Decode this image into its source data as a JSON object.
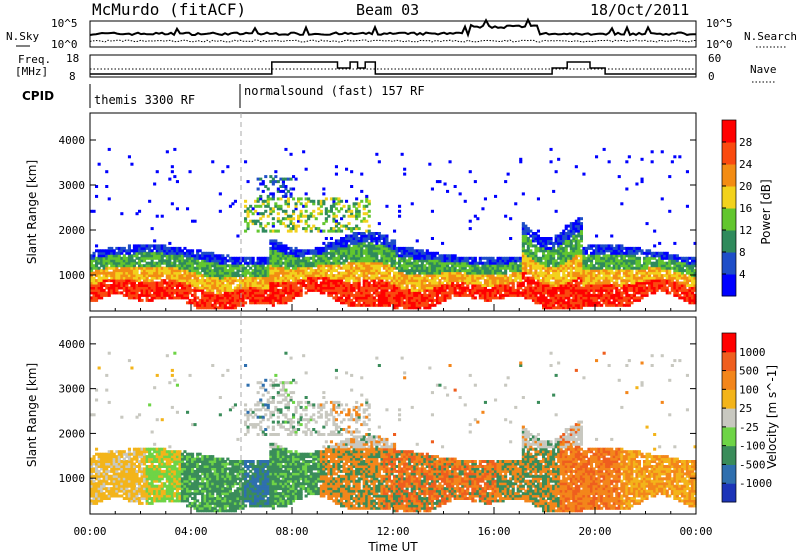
{
  "header": {
    "title": "McMurdo (fitACF)",
    "beam": "Beam 03",
    "date": "18/Oct/2011"
  },
  "noise_panel": {
    "left_label": "N.Sky",
    "left_ticks": [
      "10^5",
      "10^0"
    ],
    "right_label": "N.Search",
    "right_ticks": [
      "10^5",
      "10^0"
    ]
  },
  "freq_panel": {
    "left_label_1": "Freq.",
    "left_label_2": "[MHz]",
    "left_ticks": [
      "18",
      "8"
    ],
    "right_label": "Nave",
    "right_ticks": [
      "60",
      "0"
    ]
  },
  "cpid_panel": {
    "label": "CPID",
    "segments": [
      {
        "start_h": 0,
        "text": "themis 3300 RF"
      },
      {
        "start_h": 6,
        "text": "normalsound (fast) 157 RF"
      }
    ]
  },
  "chart_data": [
    {
      "type": "heatmap",
      "name": "power",
      "ylabel": "Slant Range [km]",
      "xlim": [
        0,
        24
      ],
      "ylim": [
        200,
        4600
      ],
      "yticks": [
        "1000",
        "2000",
        "3000",
        "4000"
      ],
      "ytick_values": [
        1000,
        2000,
        3000,
        4000
      ],
      "colorbar": {
        "label": "Power [dB]",
        "tick_labels": [
          "4",
          "8",
          "12",
          "16",
          "20",
          "24",
          "28"
        ],
        "colors": [
          "#0000ff",
          "#1e4ec8",
          "#2f8a5c",
          "#62c62e",
          "#f2d21c",
          "#f38c13",
          "#fa4a0f",
          "#ff0000"
        ]
      }
    },
    {
      "type": "heatmap",
      "name": "velocity",
      "ylabel": "Slant Range [km]",
      "xlabel": "Time UT",
      "xlim": [
        0,
        24
      ],
      "ylim": [
        200,
        4600
      ],
      "yticks": [
        "1000",
        "2000",
        "3000",
        "4000"
      ],
      "ytick_values": [
        1000,
        2000,
        3000,
        4000
      ],
      "xticks": [
        "00:00",
        "04:00",
        "08:00",
        "12:00",
        "16:00",
        "20:00",
        "00:00"
      ],
      "colorbar": {
        "label": "Velocity [m s^-1]",
        "tick_labels": [
          "1000",
          "500",
          "100",
          "25",
          "-25",
          "-100",
          "-500",
          "-1000"
        ],
        "colors": [
          "#1c34b8",
          "#2f6fae",
          "#3a8c5a",
          "#6ed446",
          "#c8c8c0",
          "#f3b41a",
          "#f3861b",
          "#ef5e1e",
          "#ff0000"
        ]
      }
    }
  ]
}
